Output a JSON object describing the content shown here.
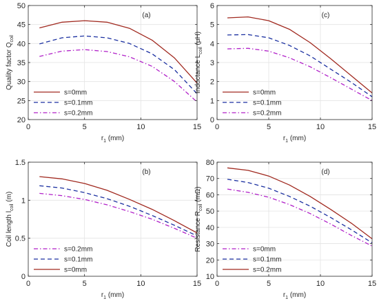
{
  "chart_data": [
    {
      "id": "a",
      "type": "line",
      "panel_label": "(a)",
      "xlabel_main": "r",
      "xlabel_sub": "1",
      "xlabel_unit": " (mm)",
      "ylabel_main": "Quality factor Q",
      "ylabel_sub": "coil",
      "ylabel_unit": "",
      "xlim": [
        0,
        15
      ],
      "ylim": [
        20,
        50
      ],
      "xticks": [
        0,
        5,
        10,
        15
      ],
      "yticks": [
        20,
        25,
        30,
        35,
        40,
        45,
        50
      ],
      "grid": true,
      "legend_position": "bottom-left",
      "x": [
        1,
        3,
        5,
        7,
        9,
        11,
        13,
        15
      ],
      "series": [
        {
          "name": "s=0mm",
          "color": "#a0281e",
          "dash": "solid",
          "values": [
            44.1,
            45.6,
            46.0,
            45.6,
            44.0,
            40.9,
            36.2,
            29.6
          ]
        },
        {
          "name": "s=0.1mm",
          "color": "#1a2fa0",
          "dash": "dashed",
          "values": [
            39.9,
            41.5,
            42.0,
            41.5,
            40.0,
            37.3,
            33.1,
            26.8
          ]
        },
        {
          "name": "s=0.2mm",
          "color": "#b01ec8",
          "dash": "dashdot",
          "values": [
            36.6,
            38.0,
            38.4,
            37.9,
            36.5,
            34.0,
            30.0,
            24.6
          ]
        }
      ]
    },
    {
      "id": "c",
      "type": "line",
      "panel_label": "(c)",
      "xlabel_main": "r",
      "xlabel_sub": "1",
      "xlabel_unit": " (mm)",
      "ylabel_main": "Inductance L",
      "ylabel_sub": "coil",
      "ylabel_unit": " (μH)",
      "xlim": [
        0,
        15
      ],
      "ylim": [
        0,
        6
      ],
      "xticks": [
        0,
        5,
        10,
        15
      ],
      "yticks": [
        0,
        1,
        2,
        3,
        4,
        5,
        6
      ],
      "grid": true,
      "legend_position": "bottom-left",
      "x": [
        1,
        3,
        5,
        7,
        9,
        11,
        13,
        15
      ],
      "series": [
        {
          "name": "s=0mm",
          "color": "#a0281e",
          "dash": "solid",
          "values": [
            5.35,
            5.4,
            5.2,
            4.75,
            4.05,
            3.2,
            2.3,
            1.4
          ]
        },
        {
          "name": "s=0.1mm",
          "color": "#1a2fa0",
          "dash": "dashed",
          "values": [
            4.45,
            4.47,
            4.3,
            3.9,
            3.35,
            2.65,
            1.95,
            1.2
          ]
        },
        {
          "name": "s=0.2mm",
          "color": "#b01ec8",
          "dash": "dashdot",
          "values": [
            3.72,
            3.75,
            3.6,
            3.25,
            2.78,
            2.2,
            1.6,
            1.0
          ]
        }
      ]
    },
    {
      "id": "b",
      "type": "line",
      "panel_label": "(b)",
      "xlabel_main": "r",
      "xlabel_sub": "1",
      "xlabel_unit": " (mm)",
      "ylabel_main": "Coil length l",
      "ylabel_sub": "coil",
      "ylabel_unit": " (m)",
      "xlim": [
        0,
        15
      ],
      "ylim": [
        0,
        1.5
      ],
      "xticks": [
        0,
        5,
        10,
        15
      ],
      "yticks": [
        0,
        0.5,
        1,
        1.5
      ],
      "grid": true,
      "legend_position": "bottom-left",
      "x": [
        1,
        3,
        5,
        7,
        9,
        11,
        13,
        15
      ],
      "series": [
        {
          "name": "s=0.2mm",
          "color": "#b01ec8",
          "dash": "dashdot",
          "values": [
            1.09,
            1.06,
            1.01,
            0.94,
            0.85,
            0.75,
            0.63,
            0.5
          ]
        },
        {
          "name": "s=0.1mm",
          "color": "#1a2fa0",
          "dash": "dashed",
          "values": [
            1.19,
            1.16,
            1.1,
            1.02,
            0.92,
            0.8,
            0.67,
            0.53
          ]
        },
        {
          "name": "s=0mm",
          "color": "#a0281e",
          "dash": "solid",
          "values": [
            1.31,
            1.28,
            1.22,
            1.13,
            1.01,
            0.88,
            0.73,
            0.57
          ]
        }
      ]
    },
    {
      "id": "d",
      "type": "line",
      "panel_label": "(d)",
      "xlabel_main": "r",
      "xlabel_sub": "1",
      "xlabel_unit": " (mm)",
      "ylabel_main": "Resistance R",
      "ylabel_sub": "coil",
      "ylabel_unit": " (mΩ)",
      "xlim": [
        0,
        15
      ],
      "ylim": [
        10,
        80
      ],
      "xticks": [
        0,
        5,
        10,
        15
      ],
      "yticks": [
        10,
        20,
        30,
        40,
        50,
        60,
        70,
        80
      ],
      "grid": true,
      "legend_position": "bottom-left",
      "x": [
        1,
        3,
        5,
        7,
        9,
        11,
        13,
        15
      ],
      "series": [
        {
          "name": "s=0mm",
          "color": "#b01ec8",
          "dash": "dashdot",
          "values": [
            63.5,
            61.5,
            58.5,
            54.0,
            48.5,
            42.0,
            35.0,
            28.5
          ]
        },
        {
          "name": "s=0.1mm",
          "color": "#1a2fa0",
          "dash": "dashed",
          "values": [
            69.5,
            67.5,
            64.0,
            59.0,
            53.0,
            46.0,
            38.5,
            30.5
          ]
        },
        {
          "name": "s=0.2mm",
          "color": "#a0281e",
          "dash": "solid",
          "values": [
            76.5,
            75.0,
            71.5,
            66.0,
            59.0,
            51.0,
            42.5,
            33.0
          ]
        }
      ]
    }
  ]
}
